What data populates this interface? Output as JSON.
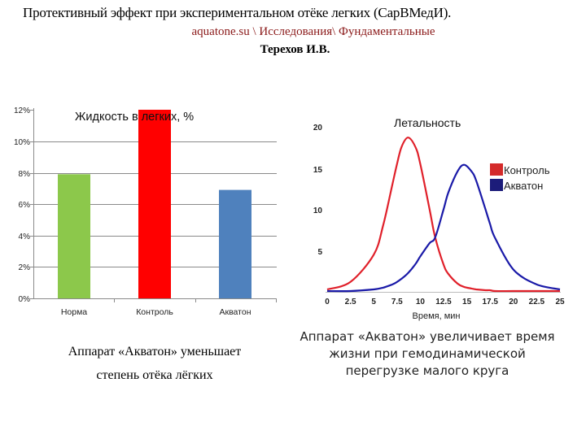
{
  "header": {
    "title": "Протективный  эффект при экспериментальном отёке легких (СарВМедИ).",
    "source": "aquatone.su \\ Исследования\\ Фундаментальные",
    "author": "Терехов И.В."
  },
  "colors": {
    "norm": "#8cc84b",
    "control": "#ff0000",
    "aquaton": "#4f81bd",
    "line_control": "#e0202a",
    "line_aquaton": "#1a1aa8",
    "legend_control": "#d42a2a",
    "legend_aquaton": "#1c1c7a",
    "source_text": "#8b1a1a"
  },
  "bar_chart": {
    "title": "Жидкость в легких, %",
    "y_ticks": [
      "0%",
      "2%",
      "4%",
      "6%",
      "8%",
      "10%",
      "12%"
    ],
    "categories": [
      "Норма",
      "Контроль",
      "Акватон"
    ]
  },
  "line_chart": {
    "title": "Летальность",
    "xlabel": "Время, мин",
    "x_ticks": [
      "0",
      "2.5",
      "5",
      "7.5",
      "10",
      "12.5",
      "15",
      "17.5",
      "20",
      "22.5",
      "25"
    ],
    "y_ticks": [
      "5",
      "10",
      "15",
      "20"
    ],
    "legend": [
      "Контроль",
      "Акватон"
    ]
  },
  "captions": {
    "left_line1": "Аппарат «Акватон» уменьшает",
    "left_line2": "степень отёка  лёгких",
    "right_line1": "Аппарат «Акватон» увеличивает время",
    "right_line2": "жизни при гемодинамической",
    "right_line3": "перегрузке малого круга"
  },
  "chart_data": [
    {
      "type": "bar",
      "title": "Жидкость в легких, %",
      "categories": [
        "Норма",
        "Контроль",
        "Акватон"
      ],
      "values": [
        7.9,
        12.0,
        6.9
      ],
      "colors": [
        "#8cc84b",
        "#ff0000",
        "#4f81bd"
      ],
      "xlabel": "",
      "ylabel": "",
      "ylim": [
        0,
        12
      ],
      "y_tick_labels": [
        "0%",
        "2%",
        "4%",
        "6%",
        "8%",
        "10%",
        "12%"
      ],
      "grid": true,
      "legend": null
    },
    {
      "type": "line",
      "title": "Летальность",
      "xlabel": "Время, мин",
      "ylabel": "",
      "xlim": [
        0,
        25
      ],
      "ylim": [
        0,
        20
      ],
      "x_tick_labels": [
        "0",
        "2.5",
        "5",
        "7.5",
        "10",
        "12.5",
        "15",
        "17.5",
        "20",
        "22.5",
        "25"
      ],
      "y_tick_labels": [
        "5",
        "10",
        "15",
        "20"
      ],
      "grid": false,
      "legend_position": "right",
      "x": [
        0,
        2.5,
        5,
        6,
        7,
        7.5,
        8,
        8.7,
        9.5,
        10,
        11,
        11.6,
        12.5,
        13,
        14,
        14.7,
        15.5,
        16,
        17,
        17.5,
        18,
        20,
        22.5,
        25
      ],
      "series": [
        {
          "name": "Контроль",
          "color": "#e0202a",
          "values": [
            0.3,
            1.2,
            4.5,
            8.0,
            13.0,
            15.5,
            17.6,
            18.7,
            17.5,
            15.5,
            10.0,
            6.6,
            3.3,
            2.2,
            1.0,
            0.6,
            0.4,
            0.3,
            0.2,
            0.2,
            0.1,
            0.1,
            0.1,
            0.1
          ]
        },
        {
          "name": "Акватон",
          "color": "#1a1aa8",
          "values": [
            0.1,
            0.1,
            0.3,
            0.5,
            0.9,
            1.2,
            1.6,
            2.3,
            3.4,
            4.3,
            5.9,
            6.6,
            10.0,
            12.0,
            14.6,
            15.4,
            14.6,
            13.5,
            10.0,
            8.2,
            6.6,
            2.7,
            0.9,
            0.3
          ]
        }
      ]
    }
  ]
}
